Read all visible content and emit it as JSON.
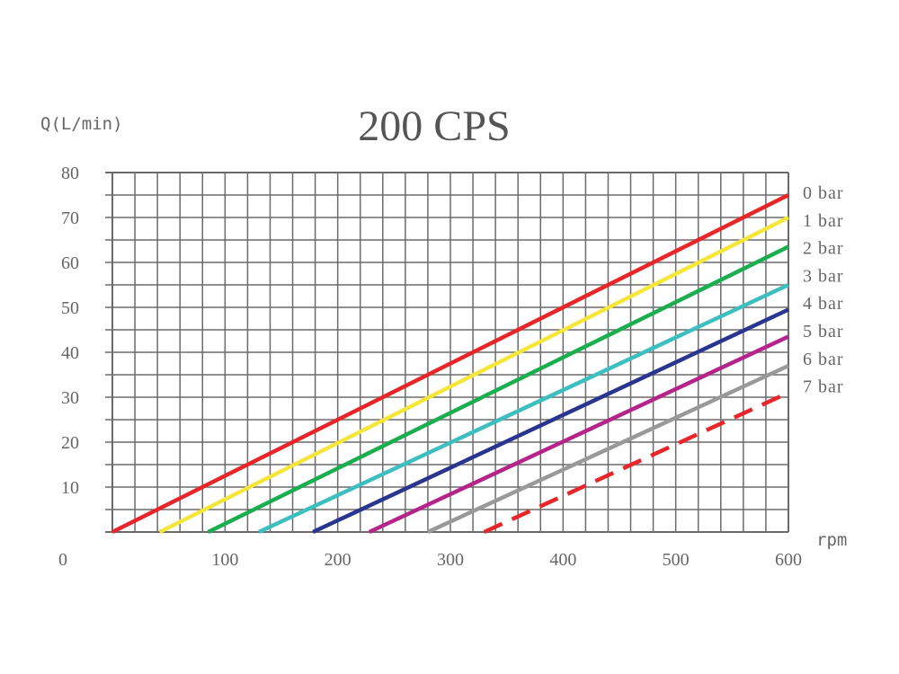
{
  "chart_data": {
    "type": "line",
    "title": "200 CPS",
    "ylabel": "Q(L/min)",
    "xlabel": "rpm",
    "origin_label": "0",
    "xlim": [
      0,
      600
    ],
    "ylim": [
      0,
      80
    ],
    "x_ticks": [
      "100",
      "200",
      "300",
      "400",
      "500",
      "600"
    ],
    "y_ticks": [
      "10",
      "20",
      "30",
      "40",
      "50",
      "60",
      "70",
      "80"
    ],
    "grid": true,
    "legend_placement": "right",
    "series": [
      {
        "name": "0 bar",
        "color": "#e8262a",
        "dashed": false,
        "x": [
          0,
          600
        ],
        "y": [
          0,
          75
        ]
      },
      {
        "name": "1 bar",
        "color": "#f5e63c",
        "dashed": false,
        "x": [
          42,
          600
        ],
        "y": [
          0,
          70
        ]
      },
      {
        "name": "2 bar",
        "color": "#1aae4f",
        "dashed": false,
        "x": [
          85,
          600
        ],
        "y": [
          0,
          63.5
        ]
      },
      {
        "name": "3 bar",
        "color": "#3dbfc0",
        "dashed": false,
        "x": [
          130,
          600
        ],
        "y": [
          0,
          55
        ]
      },
      {
        "name": "4 bar",
        "color": "#2a3590",
        "dashed": false,
        "x": [
          178,
          600
        ],
        "y": [
          0,
          49.5
        ]
      },
      {
        "name": "5 bar",
        "color": "#b5248a",
        "dashed": false,
        "x": [
          228,
          600
        ],
        "y": [
          0,
          43.5
        ]
      },
      {
        "name": "6 bar",
        "color": "#999999",
        "dashed": false,
        "x": [
          280,
          600
        ],
        "y": [
          0,
          37
        ]
      },
      {
        "name": "7 bar",
        "color": "#e8262a",
        "dashed": true,
        "x": [
          330,
          600
        ],
        "y": [
          0,
          31
        ]
      }
    ]
  }
}
